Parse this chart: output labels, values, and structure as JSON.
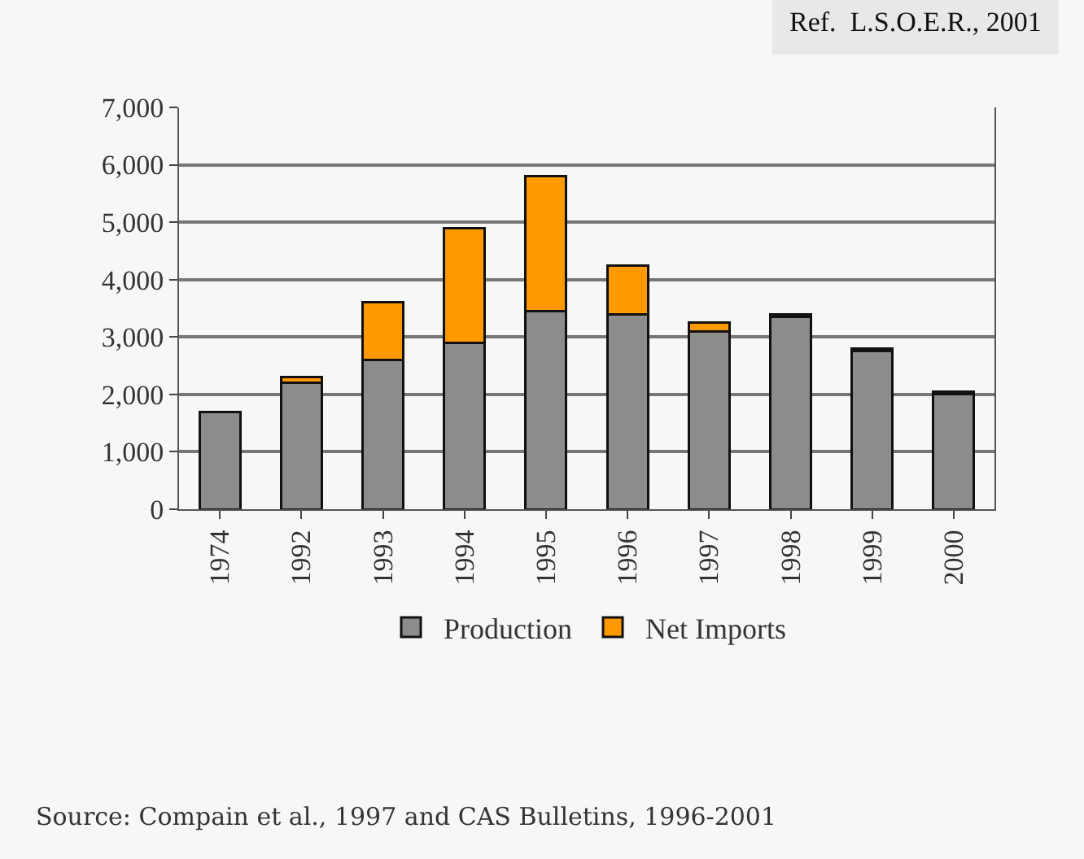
{
  "chart_data": {
    "type": "bar",
    "stacked": true,
    "categories": [
      "1974",
      "1992",
      "1993",
      "1994",
      "1995",
      "1996",
      "1997",
      "1998",
      "1999",
      "2000"
    ],
    "series": [
      {
        "name": "Production",
        "color": "#8c8c8c",
        "values": [
          1700,
          2200,
          2600,
          2900,
          3450,
          3400,
          3100,
          3350,
          2750,
          2000
        ]
      },
      {
        "name": "Net Imports",
        "color": "#ff9900",
        "values": [
          null,
          100,
          1000,
          2000,
          2350,
          850,
          150,
          50,
          50,
          50
        ]
      }
    ],
    "ylim": [
      0,
      7000
    ],
    "yticks": [
      {
        "value": 0,
        "label": "0"
      },
      {
        "value": 1000,
        "label": "1,000"
      },
      {
        "value": 2000,
        "label": "2,000"
      },
      {
        "value": 3000,
        "label": "3,000"
      },
      {
        "value": 4000,
        "label": "4,000"
      },
      {
        "value": 5000,
        "label": "5,000"
      },
      {
        "value": 6000,
        "label": "6,000"
      },
      {
        "value": 7000,
        "label": "7,000"
      }
    ],
    "grid": "y",
    "legend": "bottom",
    "annotations": [
      "Ref.  L.S.O.E.R., 2001",
      "Source: Compain et al., 1997 and CAS Bulletins, 1996-2001"
    ]
  }
}
